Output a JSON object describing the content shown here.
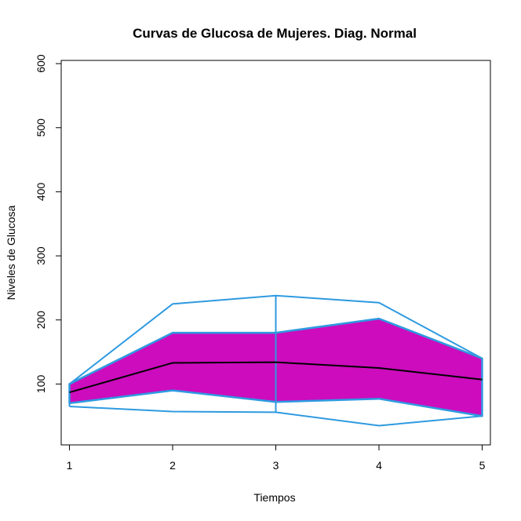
{
  "chart_data": {
    "type": "area",
    "title": "Curvas de Glucosa de Mujeres. Diag. Normal",
    "xlabel": "Tiempos",
    "ylabel": "Niveles de Glucosa",
    "x": [
      1,
      2,
      3,
      4,
      5
    ],
    "x_ticks": [
      "1",
      "2",
      "3",
      "4",
      "5"
    ],
    "y_ticks": [
      "100",
      "200",
      "300",
      "400",
      "500",
      "600"
    ],
    "y_tick_values": [
      100,
      200,
      300,
      400,
      500,
      600
    ],
    "xlim": [
      0.92,
      5.08
    ],
    "ylim": [
      5,
      605
    ],
    "grid": false,
    "series": [
      {
        "role": "max",
        "values": [
          100,
          225,
          238,
          227,
          140
        ]
      },
      {
        "role": "upper",
        "values": [
          100,
          180,
          180,
          202,
          140
        ]
      },
      {
        "role": "mean",
        "values": [
          87,
          133,
          134,
          125,
          107
        ]
      },
      {
        "role": "lower",
        "values": [
          70,
          90,
          72,
          77,
          50
        ]
      },
      {
        "role": "min",
        "values": [
          65,
          57,
          56,
          35,
          50
        ]
      }
    ],
    "colors": {
      "band_fill": "#cc0cbd",
      "envelope_line": "#2e9ae0",
      "mean_line": "#000000"
    }
  }
}
